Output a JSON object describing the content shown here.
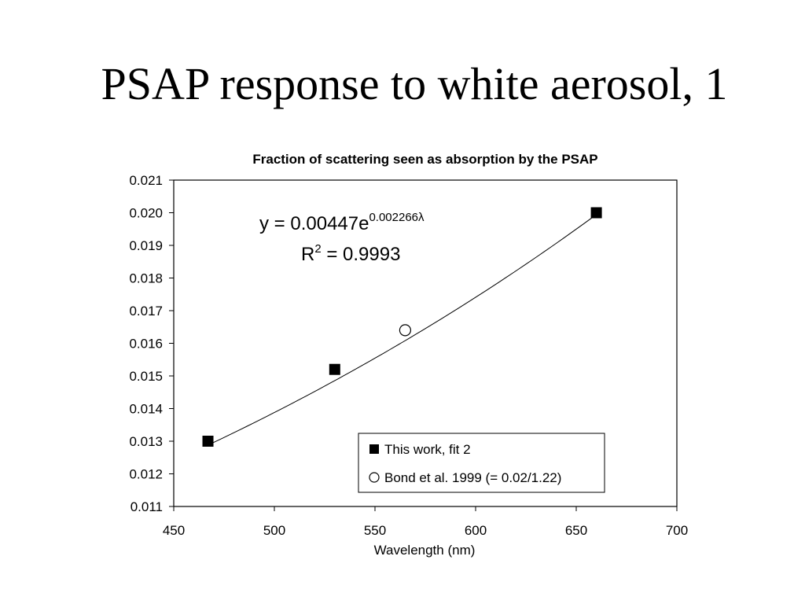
{
  "slide": {
    "title": "PSAP response to white aerosol, 1"
  },
  "chart_data": {
    "type": "scatter",
    "title": "Fraction of scattering seen as absorption by the PSAP",
    "xlabel": "Wavelength (nm)",
    "ylabel": "",
    "xlim": [
      450,
      700
    ],
    "ylim": [
      0.011,
      0.021
    ],
    "xticks": [
      "450",
      "500",
      "550",
      "600",
      "650",
      "700"
    ],
    "yticks": [
      "0.011",
      "0.012",
      "0.013",
      "0.014",
      "0.015",
      "0.016",
      "0.017",
      "0.018",
      "0.019",
      "0.020",
      "0.021"
    ],
    "series": [
      {
        "name": "This work, fit 2",
        "marker": "filled-square",
        "x": [
          467,
          530,
          660
        ],
        "y": [
          0.013,
          0.0152,
          0.02
        ]
      },
      {
        "name": "Bond et al. 1999 (= 0.02/1.22)",
        "marker": "open-circle",
        "x": [
          565
        ],
        "y": [
          0.0164
        ]
      }
    ],
    "fit": {
      "equation_prefix": "y = 0.00447e",
      "equation_exponent": "0.002266λ",
      "r2_prefix": "R",
      "r2_sup": "2",
      "r2_suffix": " = 0.9993",
      "a": 0.00447,
      "b": 0.002266,
      "x_range": [
        467,
        660
      ]
    },
    "legend_position": "bottom-right"
  }
}
